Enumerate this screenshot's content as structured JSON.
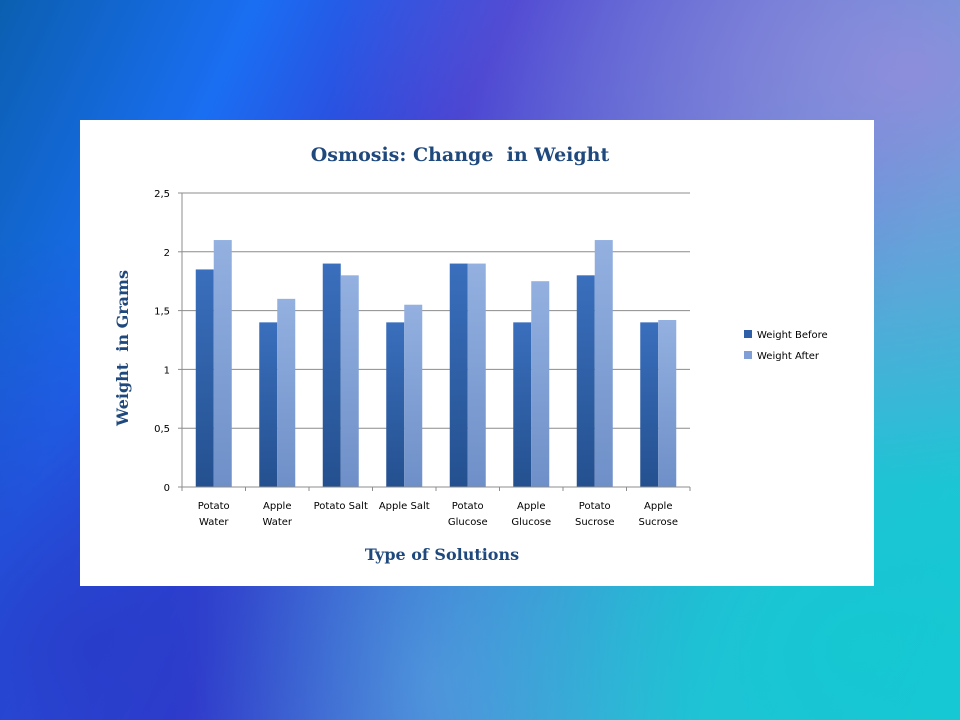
{
  "chart_data": {
    "type": "bar",
    "title": "Osmosis: Change  in Weight",
    "xlabel": "Type of Solutions",
    "ylabel": "Weight  in Grams",
    "categories": [
      [
        "Potato",
        "Water"
      ],
      [
        "Apple",
        "Water"
      ],
      [
        "Potato Salt"
      ],
      [
        "Apple Salt"
      ],
      [
        "Potato",
        "Glucose"
      ],
      [
        "Apple",
        "Glucose"
      ],
      [
        "Potato",
        "Sucrose"
      ],
      [
        "Apple",
        "Sucrose"
      ]
    ],
    "series": [
      {
        "name": "Weight Before",
        "color": "#2e5fa8",
        "values": [
          1.85,
          1.4,
          1.9,
          1.4,
          1.9,
          1.4,
          1.8,
          1.4
        ]
      },
      {
        "name": "Weight After",
        "color": "#7f9fd6",
        "values": [
          2.1,
          1.6,
          1.8,
          1.55,
          1.9,
          1.75,
          2.1,
          1.42
        ]
      }
    ],
    "ylim": [
      0,
      2.5
    ],
    "yticks": [
      "0",
      "0,5",
      "1",
      "1,5",
      "2",
      "2,5"
    ],
    "grid": true,
    "legend": "right"
  }
}
